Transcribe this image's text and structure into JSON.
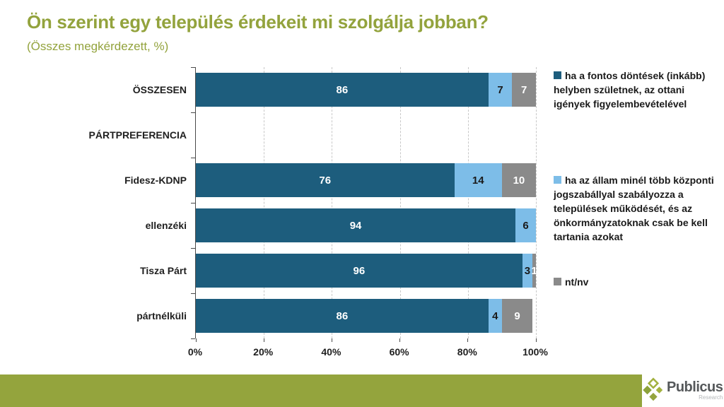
{
  "title": "Ön szerint egy település érdekeit mi szolgálja jobban?",
  "subtitle": "(Összes megkérdezett, %)",
  "accent_color": "#94a43d",
  "chart_data": {
    "type": "bar",
    "orientation": "horizontal",
    "stacked": true,
    "unit": "%",
    "xlim": [
      0,
      100
    ],
    "x_ticks": [
      "0%",
      "20%",
      "40%",
      "60%",
      "80%",
      "100%"
    ],
    "grid": "dashed-vertical",
    "legend_position": "right",
    "categories": [
      "ÖSSZESEN",
      "PÁRTPREFERENCIA",
      "Fidesz-KDNP",
      "ellenzéki",
      "Tisza Párt",
      "pártnélküli"
    ],
    "series": [
      {
        "name": "ha a fontos döntések (inkább) helyben születnek, az ottani igények figyelembevételével",
        "color": "#1d5d7d",
        "label_color": "#ffffff",
        "values": [
          86,
          null,
          76,
          94,
          96,
          86
        ]
      },
      {
        "name": "ha az állam minél több központi jogszabállyal szabályozza a települések működését, és az önkormányzatoknak csak be kell tartania azokat",
        "color": "#7dbde8",
        "label_color": "#1a1a1a",
        "values": [
          7,
          null,
          14,
          6,
          3,
          4
        ]
      },
      {
        "name": "nt/nv",
        "color": "#8a8a8a",
        "label_color": "#ffffff",
        "values": [
          7,
          null,
          10,
          0,
          1,
          9
        ]
      }
    ]
  },
  "footer": {
    "brand": "Publicus",
    "brand_sub": "Research"
  }
}
